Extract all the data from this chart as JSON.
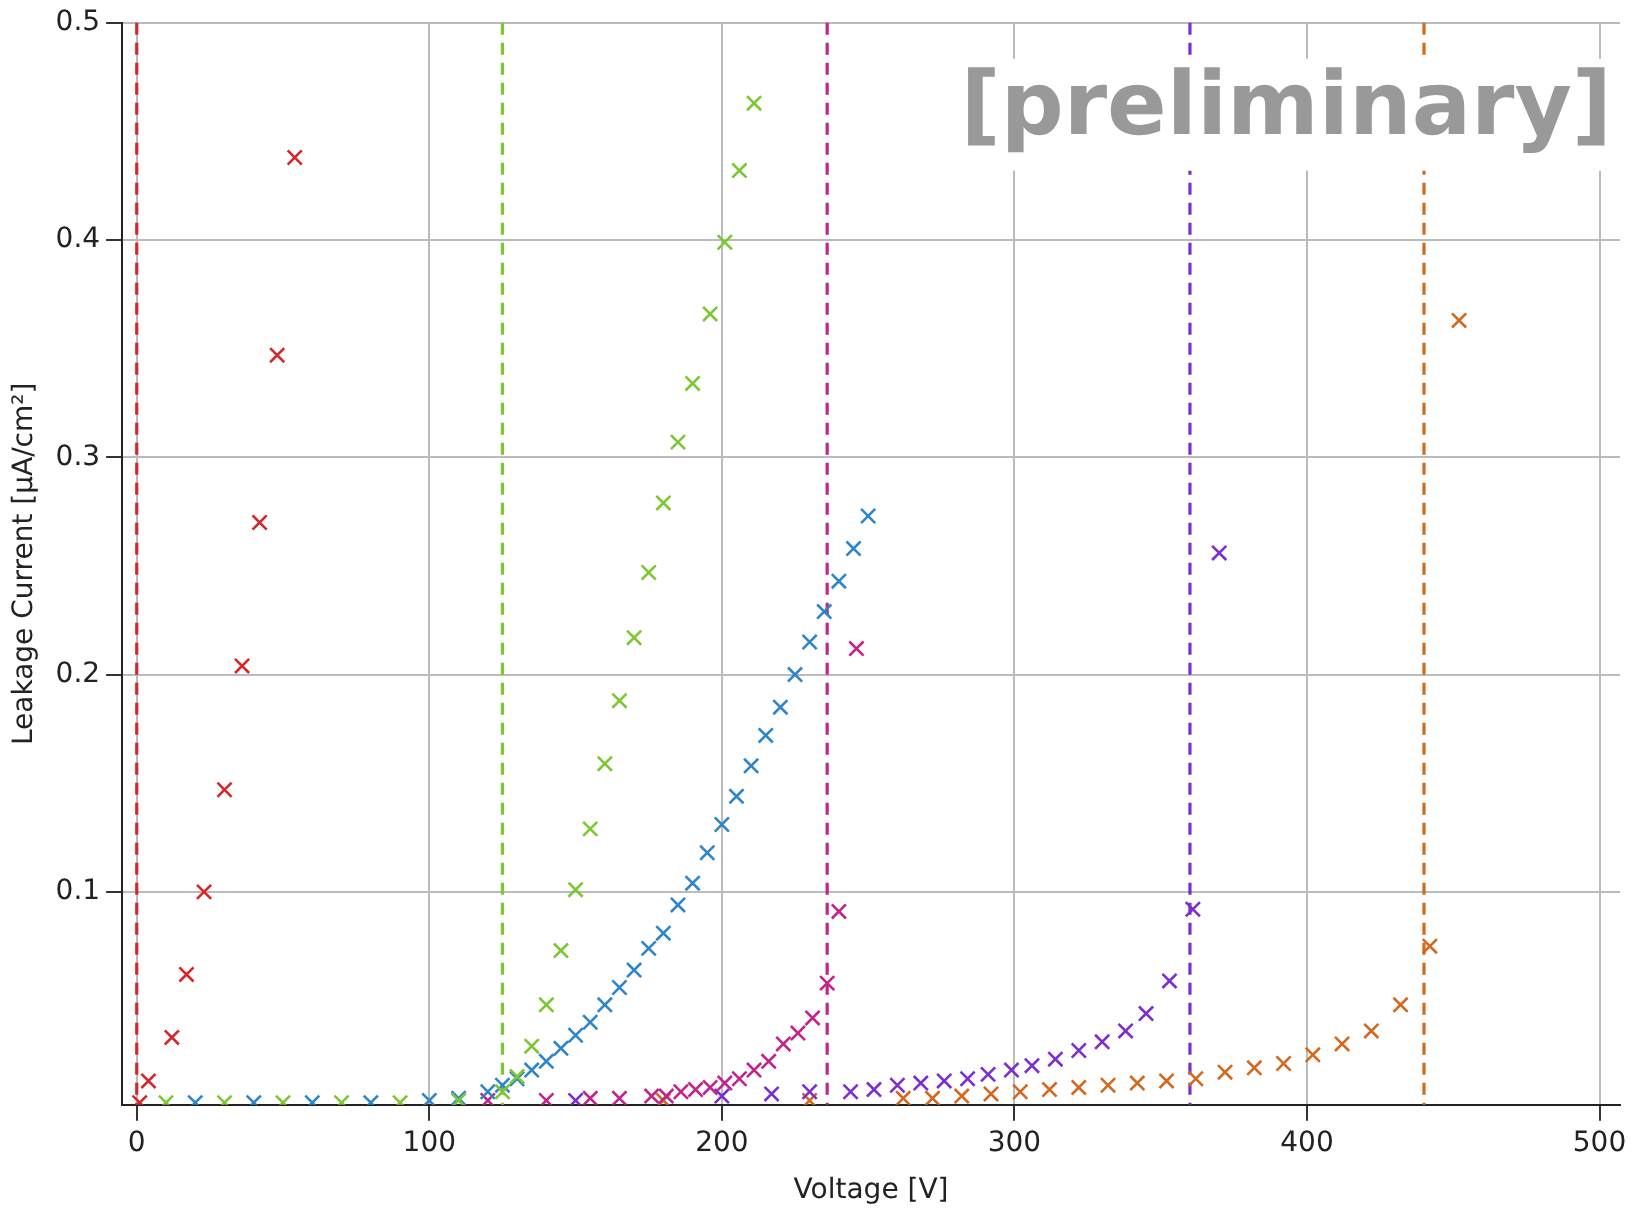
{
  "chart_data": {
    "type": "scatter",
    "xlabel": "Voltage [V]",
    "ylabel": "Leakage Current [µA/cm²]",
    "xlim": [
      -5,
      507
    ],
    "ylim": [
      0.002,
      0.5
    ],
    "xticks": [
      0,
      100,
      200,
      300,
      400,
      500
    ],
    "yticks": [
      0.1,
      0.2,
      0.3,
      0.4,
      0.5
    ],
    "grid": true,
    "legend": false,
    "marker": "cross",
    "annotations": [
      "[preliminary]"
    ],
    "series": [
      {
        "color": "#d62728",
        "x": [
          1,
          4,
          12,
          17,
          23,
          30,
          36,
          42,
          48,
          54
        ],
        "values": [
          0.003,
          0.013,
          0.033,
          0.062,
          0.1,
          0.147,
          0.204,
          0.27,
          0.347,
          0.438
        ]
      },
      {
        "color": "#7cc832",
        "x": [
          10,
          30,
          50,
          70,
          90,
          110,
          125,
          130,
          135,
          140,
          145,
          150,
          155,
          160,
          165,
          170,
          175,
          180,
          185,
          190,
          196,
          201,
          206,
          211
        ],
        "values": [
          0.003,
          0.003,
          0.003,
          0.003,
          0.003,
          0.004,
          0.008,
          0.015,
          0.029,
          0.048,
          0.073,
          0.101,
          0.129,
          0.159,
          0.188,
          0.217,
          0.247,
          0.279,
          0.307,
          0.334,
          0.366,
          0.399,
          0.432,
          0.463
        ]
      },
      {
        "color": "#2e86c8",
        "x": [
          20,
          40,
          60,
          80,
          100,
          110,
          120,
          125,
          130,
          135,
          140,
          145,
          150,
          155,
          160,
          165,
          170,
          175,
          180,
          185,
          190,
          195,
          200,
          205,
          210,
          215,
          220,
          225,
          230,
          235,
          240,
          245,
          250
        ],
        "values": [
          0.003,
          0.003,
          0.003,
          0.003,
          0.004,
          0.005,
          0.008,
          0.011,
          0.014,
          0.018,
          0.022,
          0.028,
          0.034,
          0.04,
          0.048,
          0.056,
          0.064,
          0.074,
          0.081,
          0.094,
          0.104,
          0.118,
          0.131,
          0.144,
          0.158,
          0.172,
          0.185,
          0.2,
          0.215,
          0.229,
          0.243,
          0.258,
          0.273
        ]
      },
      {
        "color": "#c2248a",
        "x": [
          120,
          140,
          155,
          165,
          176,
          181,
          186,
          191,
          196,
          201,
          206,
          211,
          216,
          221,
          226,
          231,
          236,
          240,
          246
        ],
        "values": [
          0.004,
          0.004,
          0.005,
          0.005,
          0.006,
          0.006,
          0.008,
          0.009,
          0.01,
          0.012,
          0.014,
          0.018,
          0.022,
          0.03,
          0.035,
          0.042,
          0.058,
          0.091,
          0.212
        ]
      },
      {
        "color": "#7b2fd0",
        "x": [
          150,
          200,
          217,
          230,
          244,
          252,
          260,
          268,
          276,
          284,
          291,
          299,
          306,
          314,
          322,
          330,
          338,
          345,
          353,
          361,
          370
        ],
        "values": [
          0.004,
          0.006,
          0.007,
          0.008,
          0.008,
          0.009,
          0.011,
          0.012,
          0.013,
          0.014,
          0.016,
          0.018,
          0.02,
          0.023,
          0.027,
          0.031,
          0.036,
          0.044,
          0.059,
          0.092,
          0.256
        ]
      },
      {
        "color": "#d2691e",
        "x": [
          180,
          230,
          262,
          272,
          282,
          292,
          302,
          312,
          322,
          332,
          342,
          352,
          362,
          372,
          382,
          392,
          402,
          412,
          422,
          432,
          442,
          452
        ],
        "values": [
          0.004,
          0.004,
          0.005,
          0.005,
          0.006,
          0.007,
          0.008,
          0.009,
          0.01,
          0.011,
          0.012,
          0.013,
          0.014,
          0.017,
          0.019,
          0.021,
          0.025,
          0.03,
          0.036,
          0.048,
          0.075,
          0.363
        ]
      }
    ],
    "ref_lines": [
      {
        "axis": "x",
        "value": 0,
        "color": "#d62728",
        "line_style": "dashed"
      },
      {
        "axis": "x",
        "value": 125,
        "color": "#7cc832",
        "line_style": "dashed"
      },
      {
        "axis": "x",
        "value": 236,
        "color": "#c2248a",
        "line_style": "dashed"
      },
      {
        "axis": "x",
        "value": 360,
        "color": "#7b2fd0",
        "line_style": "dashed"
      },
      {
        "axis": "x",
        "value": 440,
        "color": "#d2691e",
        "line_style": "dashed"
      }
    ]
  }
}
